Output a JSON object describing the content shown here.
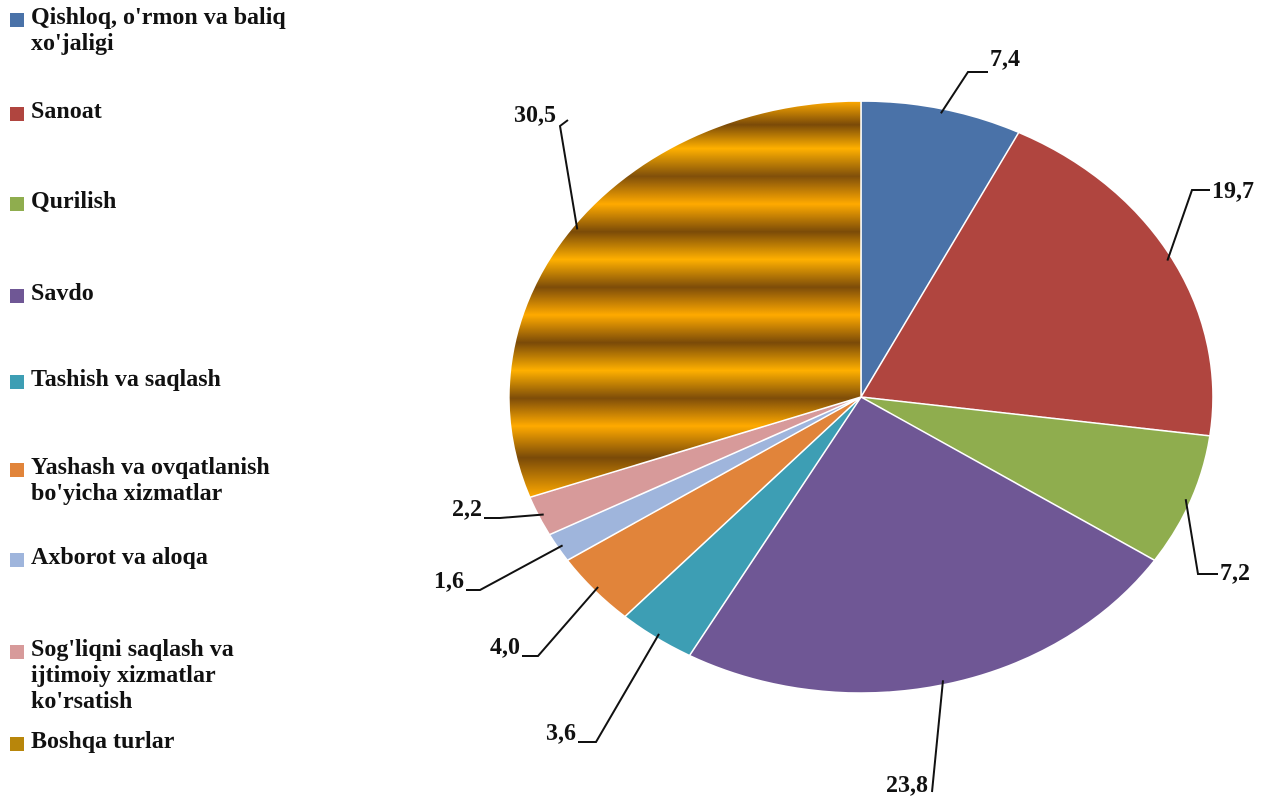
{
  "chart_data": {
    "type": "pie",
    "title": "",
    "start_angle_deg": 0,
    "direction": "clockwise",
    "legend_position": "left",
    "slices": [
      {
        "label": "Qishloq, o'rmon va baliq xo'jaligi",
        "value": 7.4,
        "value_label": "7,4",
        "color": "#4a72a8"
      },
      {
        "label": "Sanoat",
        "value": 19.7,
        "value_label": "19,7",
        "color": "#b0453f"
      },
      {
        "label": "Qurilish",
        "value": 7.2,
        "value_label": "7,2",
        "color": "#8fad4e"
      },
      {
        "label": "Savdo",
        "value": 23.8,
        "value_label": "23,8",
        "color": "#6f5795"
      },
      {
        "label": "Tashish va saqlash",
        "value": 3.6,
        "value_label": "3,6",
        "color": "#3d9eb4"
      },
      {
        "label": "Yashash va ovqatlanish bo'yicha xizmatlar",
        "value": 4.0,
        "value_label": "4,0",
        "color": "#e1843a"
      },
      {
        "label": "Axborot va aloqa",
        "value": 1.6,
        "value_label": "1,6",
        "color": "#9fb5dc"
      },
      {
        "label": "Sog'liqni saqlash va ijtimoiy xizmatlar ko'rsatish",
        "value": 2.2,
        "value_label": "2,2",
        "color": "#d79a9a"
      },
      {
        "label": "Boshqa turlar",
        "value": 30.5,
        "value_label": "30,5",
        "color": "#b8860b"
      }
    ]
  },
  "legend": {
    "items": [
      {
        "label": "Qishloq, o'rmon va baliq\nxo'jaligi",
        "color": "#4a72a8"
      },
      {
        "label": "Sanoat",
        "color": "#b0453f"
      },
      {
        "label": "Qurilish",
        "color": "#8fad4e"
      },
      {
        "label": "Savdo",
        "color": "#6f5795"
      },
      {
        "label": "Tashish va saqlash",
        "color": "#3d9eb4"
      },
      {
        "label": "Yashash va ovqatlanish\nbo'yicha xizmatlar",
        "color": "#e1843a"
      },
      {
        "label": "Axborot va aloqa",
        "color": "#9fb5dc"
      },
      {
        "label": "Sog'liqni saqlash va\nijtimoiy xizmatlar\nko'rsatish",
        "color": "#d79a9a"
      },
      {
        "label": "Boshqa turlar",
        "color": "#b8860b"
      }
    ]
  }
}
